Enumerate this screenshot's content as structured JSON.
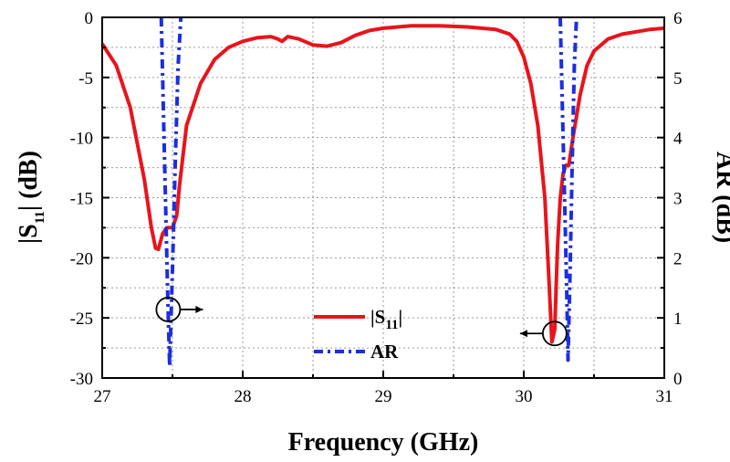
{
  "chart_data": {
    "type": "line",
    "xlabel": "Frequency (GHz)",
    "ylabel_left_main": "|S",
    "ylabel_left_sub": "11",
    "ylabel_left_tail": "| (dB)",
    "ylabel_right": "AR (dB)",
    "x_ticks": [
      "27",
      "28",
      "29",
      "30",
      "31"
    ],
    "y_left_ticks": [
      "0",
      "-5",
      "-10",
      "-15",
      "-20",
      "-25",
      "-30"
    ],
    "y_right_ticks": [
      "6",
      "5",
      "4",
      "3",
      "2",
      "1",
      "0"
    ],
    "xlim": [
      27,
      31
    ],
    "ylim_left": [
      -30,
      0
    ],
    "ylim_right": [
      0,
      6
    ],
    "grid": true,
    "legend_position": "bottom-center",
    "series": [
      {
        "name": "|S11|",
        "legend_main": "|S",
        "legend_sub": "11",
        "legend_tail": "|",
        "axis": "left",
        "color": "#e8141c",
        "style": "solid",
        "x": [
          27.0,
          27.1,
          27.2,
          27.3,
          27.35,
          27.38,
          27.4,
          27.43,
          27.46,
          27.5,
          27.53,
          27.55,
          27.6,
          27.7,
          27.8,
          27.9,
          28.0,
          28.1,
          28.2,
          28.25,
          28.28,
          28.32,
          28.4,
          28.5,
          28.6,
          28.7,
          28.8,
          28.9,
          29.0,
          29.2,
          29.4,
          29.6,
          29.8,
          29.9,
          29.95,
          30.0,
          30.05,
          30.1,
          30.15,
          30.18,
          30.2,
          30.22,
          30.24,
          30.26,
          30.28,
          30.3,
          30.32,
          30.35,
          30.4,
          30.45,
          30.5,
          30.6,
          30.7,
          30.8,
          30.9,
          31.0
        ],
        "y": [
          -2.2,
          -4.0,
          -7.5,
          -13.5,
          -17.5,
          -19.2,
          -19.3,
          -18.0,
          -17.5,
          -17.5,
          -16.5,
          -14.0,
          -9.0,
          -5.5,
          -3.5,
          -2.5,
          -2.0,
          -1.7,
          -1.6,
          -1.8,
          -2.0,
          -1.6,
          -1.8,
          -2.3,
          -2.4,
          -2.1,
          -1.5,
          -1.1,
          -0.9,
          -0.7,
          -0.7,
          -0.8,
          -1.0,
          -1.4,
          -2.0,
          -3.3,
          -5.5,
          -9.0,
          -15.0,
          -22.0,
          -27.0,
          -26.0,
          -19.0,
          -15.0,
          -13.0,
          -12.3,
          -12.3,
          -10.0,
          -6.5,
          -4.0,
          -2.8,
          -1.8,
          -1.4,
          -1.2,
          -1.0,
          -0.9
        ]
      },
      {
        "name": "AR",
        "legend_main": "AR",
        "axis": "right",
        "color": "#1c2ee0",
        "style": "dash-dot",
        "segments": [
          {
            "x": [
              27.42,
              27.435,
              27.45,
              27.465,
              27.48,
              27.5,
              27.52,
              27.54,
              27.56
            ],
            "y": [
              6.0,
              4.5,
              3.0,
              1.5,
              0.2,
              1.8,
              3.6,
              5.2,
              6.0
            ]
          },
          {
            "x": [
              30.26,
              30.275,
              30.29,
              30.305,
              30.315,
              30.33,
              30.345,
              30.36,
              30.375
            ],
            "y": [
              6.0,
              4.5,
              3.0,
              1.5,
              0.3,
              1.8,
              3.6,
              5.2,
              6.0
            ]
          }
        ]
      }
    ],
    "annotations": [
      {
        "name": "ar-marker-circle",
        "x": 27.47,
        "y_left": -24.3,
        "arrow": "right"
      },
      {
        "name": "s11-marker-circle",
        "x": 30.22,
        "y_left": -26.3,
        "arrow": "left"
      }
    ]
  }
}
